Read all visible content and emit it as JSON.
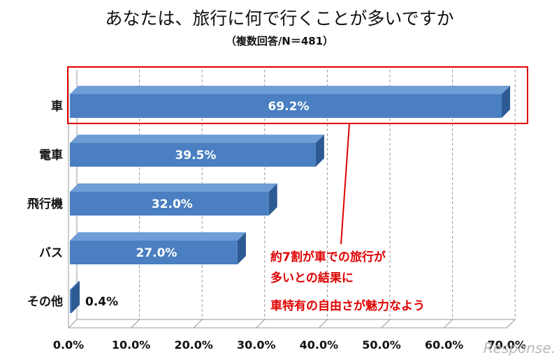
{
  "chart_data": {
    "type": "bar",
    "orientation": "horizontal",
    "title": "あなたは、旅行に何で行くことが多いですか",
    "subtitle": "（複数回答/N＝481）",
    "categories": [
      "車",
      "電車",
      "飛行機",
      "バス",
      "その他"
    ],
    "values": [
      69.2,
      39.5,
      32.0,
      27.0,
      0.4
    ],
    "value_labels": [
      "69.2%",
      "39.5%",
      "32.0%",
      "27.0%",
      "0.4%"
    ],
    "xlim": [
      0,
      70
    ],
    "x_ticks": [
      0,
      10,
      20,
      30,
      40,
      50,
      60,
      70
    ],
    "x_tick_labels": [
      "0.0%",
      "10.0%",
      "20.0%",
      "30.0%",
      "40.0%",
      "50.0%",
      "60.0%",
      "70.0%"
    ],
    "grid": "vertical dashed",
    "highlight_category": "車",
    "annotation_lines": [
      "約7割が車での旅行が",
      "多いとの結果に",
      "車特有の自由さが魅力なよう"
    ],
    "colors": {
      "bar_front": "#4a7fc1",
      "bar_top": "#6f9dd6",
      "bar_side": "#2d5a93",
      "highlight": "#e00000",
      "grid": "#999999"
    }
  },
  "watermark": "Response."
}
